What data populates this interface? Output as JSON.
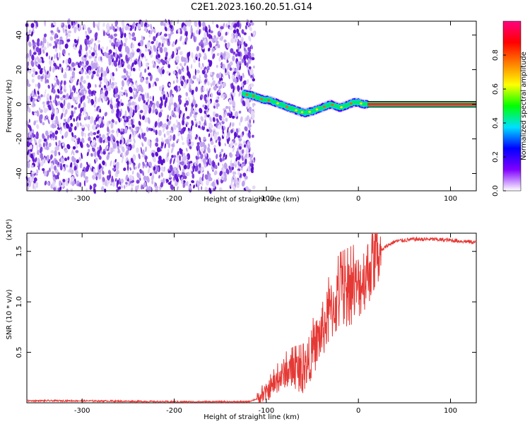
{
  "title": "C2E1.2023.160.20.51.G14",
  "chart_data": [
    {
      "type": "heatmap",
      "xlabel": "Height of straight line (km)",
      "ylabel": "Frequency (Hz)",
      "xlim": [
        -360,
        128
      ],
      "ylim": [
        -50,
        48
      ],
      "x_ticks": [
        -300,
        -200,
        -100,
        0,
        100
      ],
      "x_tick_labels": [
        "-300",
        "-200",
        "-100",
        "0",
        "100"
      ],
      "y_ticks": [
        -40,
        -20,
        0,
        20,
        40
      ],
      "y_tick_labels": [
        "-40",
        "-20",
        "0",
        "20",
        "40"
      ],
      "noise_region_x": [
        -360,
        -113
      ],
      "ridge": {
        "x": [
          -125,
          -115,
          -105,
          -95,
          -85,
          -75,
          -65,
          -58,
          -50,
          -45,
          -40,
          -35,
          -30,
          -25,
          -20,
          -15,
          -10,
          -5,
          0,
          5,
          10
        ],
        "freq": [
          6,
          5,
          3,
          2,
          0,
          -2,
          -4,
          -5,
          -4,
          -3,
          -2,
          -1,
          0,
          -1,
          -2,
          -1,
          0,
          1,
          1,
          0,
          0
        ]
      },
      "steady_line": {
        "x": [
          10,
          128
        ],
        "freq": 0
      },
      "colorbar": {
        "label": "Normalized spectral amplitude",
        "range": [
          0,
          1
        ],
        "ticks": [
          0.0,
          0.2,
          0.4,
          0.6,
          0.8
        ],
        "tick_labels": [
          "0.0",
          "0.2",
          "0.4",
          "0.6",
          "0.8"
        ],
        "colormap": [
          "#ffffff",
          "#8000ff",
          "#0000ff",
          "#00e0ff",
          "#00ff00",
          "#ffff00",
          "#ff8000",
          "#ff0000",
          "#ff0080"
        ]
      },
      "colors": {
        "noise": "#8a2be2",
        "steady_line": "#e03030"
      }
    },
    {
      "type": "line",
      "xlabel": "Height of straight line (km)",
      "ylabel": "SNR (10 * v/v)",
      "y_multiplier": "(x10⁴)",
      "xlim": [
        -360,
        128
      ],
      "ylim": [
        0,
        1.68
      ],
      "x_ticks": [
        -300,
        -200,
        -100,
        0,
        100
      ],
      "x_tick_labels": [
        "-300",
        "-200",
        "-100",
        "0",
        "100"
      ],
      "y_ticks": [
        0.5,
        1.0,
        1.5
      ],
      "y_tick_labels": [
        "0.5",
        "1.0",
        "1.5"
      ],
      "series": [
        {
          "color": "#e53935",
          "x": [
            -360,
            -300,
            -200,
            -120,
            -110,
            -100,
            -90,
            -80,
            -70,
            -60,
            -50,
            -40,
            -30,
            -20,
            -10,
            0,
            10,
            20,
            30,
            40,
            60,
            80,
            100,
            128
          ],
          "y": [
            0.02,
            0.02,
            0.01,
            0.01,
            0.04,
            0.1,
            0.2,
            0.3,
            0.32,
            0.3,
            0.5,
            0.7,
            0.9,
            1.05,
            1.1,
            1.15,
            1.3,
            1.45,
            1.55,
            1.6,
            1.62,
            1.62,
            1.61,
            1.59
          ]
        }
      ]
    }
  ]
}
